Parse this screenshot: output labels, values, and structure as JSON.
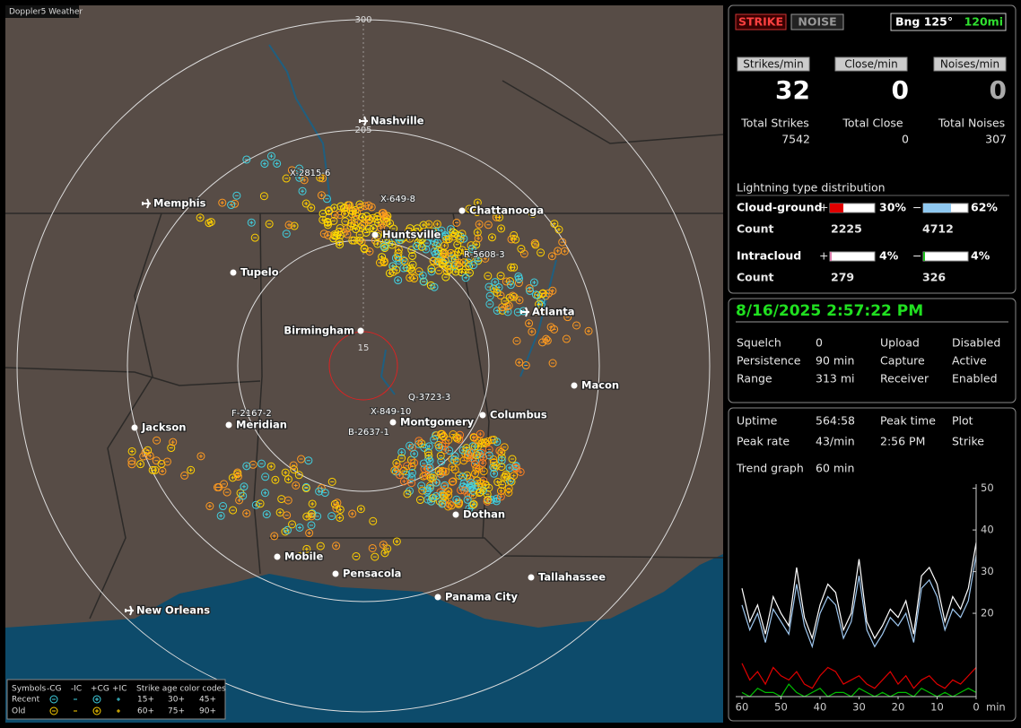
{
  "app_title": "Doppler5 Weather",
  "map": {
    "ring_labels": [
      "300",
      "205",
      "15"
    ],
    "cities": [
      {
        "name": "Nashville",
        "airport": true
      },
      {
        "name": "Memphis",
        "airport": true
      },
      {
        "name": "Chattanooga",
        "airport": false
      },
      {
        "name": "Huntsville",
        "airport": false
      },
      {
        "name": "Tupelo",
        "airport": false
      },
      {
        "name": "Atlanta",
        "airport": true
      },
      {
        "name": "Birmingham",
        "airport": false
      },
      {
        "name": "Macon",
        "airport": false
      },
      {
        "name": "Columbus",
        "airport": false
      },
      {
        "name": "Montgomery",
        "airport": false
      },
      {
        "name": "Jackson",
        "airport": false
      },
      {
        "name": "Meridian",
        "airport": false
      },
      {
        "name": "Dothan",
        "airport": false
      },
      {
        "name": "Mobile",
        "airport": false
      },
      {
        "name": "Pensacola",
        "airport": false
      },
      {
        "name": "Tallahassee",
        "airport": false
      },
      {
        "name": "Panama City",
        "airport": false
      },
      {
        "name": "New Orleans",
        "airport": true
      }
    ],
    "storm_ids": [
      "X-2815-6",
      "X-649-8",
      "R-5608-3",
      "Q-3723-3",
      "X-849-10",
      "F-2167-2",
      "B-2637-1"
    ]
  },
  "legend": {
    "symbols": "Symbols",
    "types": [
      "-CG",
      "-IC",
      "+CG",
      "+IC"
    ],
    "age_title": "Strike age color codes",
    "rows": [
      {
        "label": "Recent",
        "ages": [
          "15+",
          "30+",
          "45+"
        ]
      },
      {
        "label": "Old",
        "ages": [
          "60+",
          "75+",
          "90+"
        ]
      }
    ]
  },
  "status": {
    "strike": "STRIKE",
    "noise": "NOISE",
    "bearing": "Bng 125°",
    "range": "120mi"
  },
  "rates": [
    {
      "header": "Strikes/min",
      "value": "32",
      "total_label": "Total Strikes",
      "total": "7542"
    },
    {
      "header": "Close/min",
      "value": "0",
      "total_label": "Total Close",
      "total": "0"
    },
    {
      "header": "Noises/min",
      "value": "0",
      "total_label": "Total Noises",
      "total": "307"
    }
  ],
  "distribution": {
    "title": "Lightning type distribution",
    "count_label": "Count",
    "plus": "+",
    "minus": "−",
    "rows": [
      {
        "name": "Cloud-ground",
        "pos": {
          "value": 30,
          "label": "30%"
        },
        "neg": {
          "value": 62,
          "label": "62%"
        },
        "pos_count": "2225",
        "neg_count": "4712"
      },
      {
        "name": "Intracloud",
        "pos": {
          "value": 4,
          "label": "4%"
        },
        "neg": {
          "value": 4,
          "label": "4%"
        },
        "pos_count": "279",
        "neg_count": "326"
      }
    ]
  },
  "clock": "8/16/2025 2:57:22 PM",
  "settings": [
    [
      "Squelch",
      "0",
      "Upload",
      "Disabled"
    ],
    [
      "Persistence",
      "90 min",
      "Capture",
      "Active"
    ],
    [
      "Range",
      "313 mi",
      "Receiver",
      "Enabled"
    ]
  ],
  "stats": [
    [
      "Uptime",
      "564:58",
      "Peak time",
      "Plot"
    ],
    [
      "Peak rate",
      "43/min",
      "2:56 PM",
      "Strike"
    ],
    [
      "Trend graph",
      "60 min"
    ]
  ],
  "chart_data": {
    "type": "line",
    "xlabel": "min",
    "x": [
      60,
      58,
      56,
      54,
      52,
      50,
      48,
      46,
      44,
      42,
      40,
      38,
      36,
      34,
      32,
      30,
      28,
      26,
      24,
      22,
      20,
      18,
      16,
      14,
      12,
      10,
      8,
      6,
      4,
      2,
      0
    ],
    "xlim": [
      60,
      0
    ],
    "xticks": [
      60,
      50,
      40,
      30,
      20,
      10,
      0
    ],
    "ylim": [
      0,
      51
    ],
    "yticks": [
      20,
      30,
      40,
      50
    ],
    "series": [
      {
        "color": "#ffffff",
        "values": [
          26,
          18,
          22,
          15,
          24,
          20,
          17,
          31,
          19,
          14,
          22,
          27,
          25,
          16,
          20,
          33,
          18,
          14,
          17,
          21,
          19,
          23,
          15,
          29,
          31,
          27,
          18,
          24,
          21,
          26,
          37
        ]
      },
      {
        "color": "#9fc8f0",
        "values": [
          22,
          16,
          20,
          13,
          21,
          18,
          15,
          27,
          17,
          12,
          20,
          24,
          22,
          14,
          18,
          29,
          16,
          12,
          15,
          19,
          17,
          20,
          13,
          26,
          28,
          24,
          16,
          21,
          19,
          23,
          34
        ]
      },
      {
        "color": "#e00000",
        "values": [
          8,
          4,
          6,
          3,
          7,
          5,
          4,
          6,
          3,
          2,
          5,
          7,
          6,
          3,
          4,
          5,
          3,
          2,
          4,
          6,
          3,
          5,
          2,
          4,
          5,
          3,
          2,
          4,
          3,
          5,
          7
        ]
      },
      {
        "color": "#00c000",
        "values": [
          1,
          0,
          2,
          1,
          1,
          0,
          3,
          1,
          0,
          1,
          2,
          0,
          1,
          1,
          0,
          2,
          1,
          0,
          1,
          0,
          1,
          1,
          0,
          2,
          1,
          0,
          1,
          0,
          1,
          2,
          1
        ]
      }
    ]
  }
}
